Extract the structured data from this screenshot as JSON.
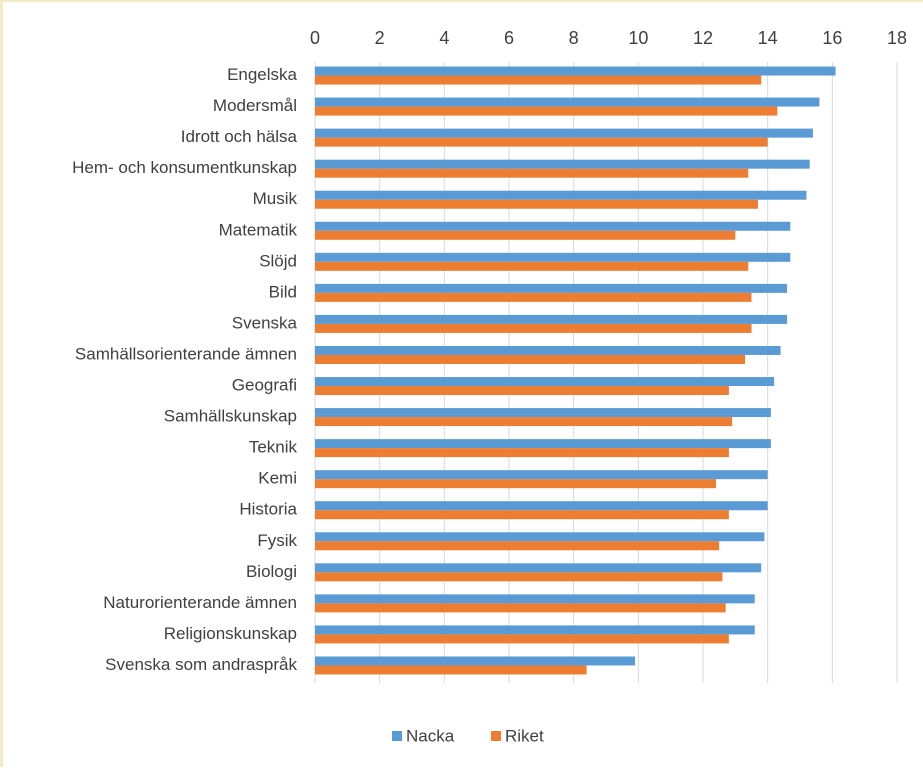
{
  "chart_data": {
    "type": "bar",
    "orientation": "horizontal",
    "title": "",
    "xlabel": "",
    "ylabel": "",
    "xlim": [
      0,
      18
    ],
    "x_ticks": [
      "0",
      "2",
      "4",
      "6",
      "8",
      "10",
      "12",
      "14",
      "16",
      "18"
    ],
    "x_axis_position": "top",
    "grid": true,
    "legend_position": "bottom",
    "categories": [
      "Engelska",
      "Modersmål",
      "Idrott och hälsa",
      "Hem- och konsumentkunskap",
      "Musik",
      "Matematik",
      "Slöjd",
      "Bild",
      "Svenska",
      "Samhällsorienterande ämnen",
      "Geografi",
      "Samhällskunskap",
      "Teknik",
      "Kemi",
      "Historia",
      "Fysik",
      "Biologi",
      "Naturorienterande ämnen",
      "Religionskunskap",
      "Svenska som andraspråk"
    ],
    "series": [
      {
        "name": "Nacka",
        "color": "#5b9bd5",
        "values": [
          16.1,
          15.6,
          15.4,
          15.3,
          15.2,
          14.7,
          14.7,
          14.6,
          14.6,
          14.4,
          14.2,
          14.1,
          14.1,
          14.0,
          14.0,
          13.9,
          13.8,
          13.6,
          13.6,
          9.9
        ]
      },
      {
        "name": "Riket",
        "color": "#ed7d31",
        "values": [
          13.8,
          14.3,
          14.0,
          13.4,
          13.7,
          13.0,
          13.4,
          13.5,
          13.5,
          13.3,
          12.8,
          12.9,
          12.8,
          12.4,
          12.8,
          12.5,
          12.6,
          12.7,
          12.8,
          8.4
        ]
      }
    ]
  }
}
